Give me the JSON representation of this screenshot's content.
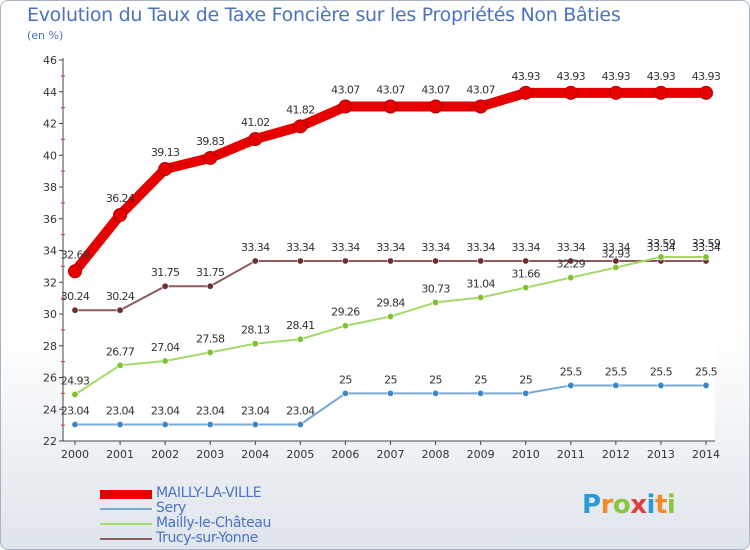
{
  "header": {
    "title": "Evolution du Taux de Taxe Foncière sur les Propriétés Non Bâties",
    "unit": "(en %)"
  },
  "logo": {
    "letters": [
      {
        "ch": "P",
        "color": "#2a9bd7"
      },
      {
        "ch": "r",
        "color": "#f28c28"
      },
      {
        "ch": "o",
        "color": "#8cc63f"
      },
      {
        "ch": "x",
        "color": "#e43c3c"
      },
      {
        "ch": "i",
        "color": "#2a9bd7"
      },
      {
        "ch": "t",
        "color": "#f28c28"
      },
      {
        "ch": "i",
        "color": "#8cc63f"
      }
    ]
  },
  "chart_data": {
    "type": "line",
    "title": "Evolution du Taux de Taxe Foncière sur les Propriétés Non Bâties",
    "ylabel": "(en %)",
    "xlabel": "",
    "ylim": [
      22,
      46
    ],
    "yticks": [
      "22",
      "24",
      "26",
      "28",
      "30",
      "32",
      "34",
      "36",
      "38",
      "40",
      "42",
      "44",
      "46"
    ],
    "yticks_values": [
      22,
      24,
      26,
      28,
      30,
      32,
      34,
      36,
      38,
      40,
      42,
      44,
      46
    ],
    "grid": false,
    "legend_position": "bottom-left",
    "categories": [
      "2000",
      "2001",
      "2002",
      "2003",
      "2004",
      "2005",
      "2006",
      "2007",
      "2008",
      "2009",
      "2010",
      "2011",
      "2012",
      "2013",
      "2014"
    ],
    "series": [
      {
        "name": "MAILLY-LA-VILLE",
        "color": "#e60000",
        "marker": "#e60000",
        "values": [
          32.69,
          36.24,
          39.13,
          39.83,
          41.02,
          41.82,
          43.07,
          43.07,
          43.07,
          43.07,
          43.93,
          43.93,
          43.93,
          43.93,
          43.93
        ],
        "labels": [
          "32.69",
          "36.24",
          "39.13",
          "39.83",
          "41.02",
          "41.82",
          "43.07",
          "43.07",
          "43.07",
          "43.07",
          "43.93",
          "43.93",
          "43.93",
          "43.93",
          "43.93"
        ]
      },
      {
        "name": "Sery",
        "color": "#7aa8d4",
        "marker": "#3d86c6",
        "values": [
          23.04,
          23.04,
          23.04,
          23.04,
          23.04,
          23.04,
          25,
          25,
          25,
          25,
          25,
          25.5,
          25.5,
          25.5,
          25.5
        ],
        "labels": [
          "23.04",
          "23.04",
          "23.04",
          "23.04",
          "23.04",
          "23.04",
          "25",
          "25",
          "25",
          "25",
          "25",
          "25.5",
          "25.5",
          "25.5",
          "25.5"
        ]
      },
      {
        "name": "Mailly-le-Château",
        "color": "#a6d96a",
        "marker": "#7ec230",
        "values": [
          24.93,
          26.77,
          27.04,
          27.58,
          28.13,
          28.41,
          29.26,
          29.84,
          30.73,
          31.04,
          31.66,
          32.29,
          32.93,
          33.59,
          33.59
        ],
        "labels": [
          "24.93",
          "26.77",
          "27.04",
          "27.58",
          "28.13",
          "28.41",
          "29.26",
          "29.84",
          "30.73",
          "31.04",
          "31.66",
          "32.29",
          "32.93",
          "33.59",
          "33.59"
        ]
      },
      {
        "name": "Trucy-sur-Yonne",
        "color": "#8b5a5a",
        "marker": "#6e2e2e",
        "values": [
          30.24,
          30.24,
          31.75,
          31.75,
          33.34,
          33.34,
          33.34,
          33.34,
          33.34,
          33.34,
          33.34,
          33.34,
          33.34,
          33.34,
          33.34
        ],
        "labels": [
          "30.24",
          "30.24",
          "31.75",
          "31.75",
          "33.34",
          "33.34",
          "33.34",
          "33.34",
          "33.34",
          "33.34",
          "33.34",
          "33.34",
          "33.34",
          "33.34",
          "33.34"
        ]
      }
    ]
  }
}
